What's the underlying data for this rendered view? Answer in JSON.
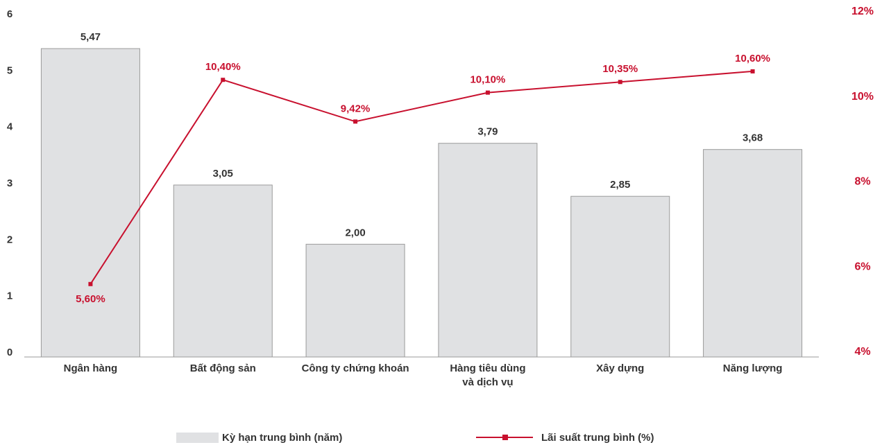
{
  "chart_data": {
    "type": "bar",
    "categories": [
      [
        "Ngân hàng"
      ],
      [
        "Bất động sản"
      ],
      [
        "Công ty chứng khoán"
      ],
      [
        "Hàng tiêu dùng",
        "và dịch vụ"
      ],
      [
        "Xây dựng"
      ],
      [
        "Năng lượng"
      ]
    ],
    "series": [
      {
        "name": "Kỳ hạn trung bình (năm)",
        "type": "bar",
        "axis": "left",
        "values": [
          5.47,
          3.05,
          2.0,
          3.79,
          2.85,
          3.68
        ],
        "labels": [
          "5,47",
          "3,05",
          "2,00",
          "3,79",
          "2,85",
          "3,68"
        ],
        "color": "#e0e1e3",
        "border_color": "#9a9a9a"
      },
      {
        "name": "Lãi suất trung bình (%)",
        "type": "line",
        "axis": "right",
        "values": [
          5.6,
          10.4,
          9.42,
          10.1,
          10.35,
          10.6
        ],
        "labels": [
          "5,60%",
          "10,40%",
          "9,42%",
          "10,10%",
          "10,35%",
          "10,60%"
        ],
        "label_position": [
          "below",
          "above",
          "above",
          "above",
          "above",
          "above"
        ],
        "color": "#c8102e"
      }
    ],
    "y_left": {
      "range": [
        0,
        6
      ],
      "ticks": [
        "0",
        "1",
        "2",
        "3",
        "4",
        "5",
        "6"
      ]
    },
    "y_right": {
      "range": [
        4,
        12
      ],
      "ticks": [
        "4%",
        "6%",
        "8%",
        "10%",
        "12%"
      ]
    },
    "grid": false,
    "legend_position": "bottom"
  }
}
